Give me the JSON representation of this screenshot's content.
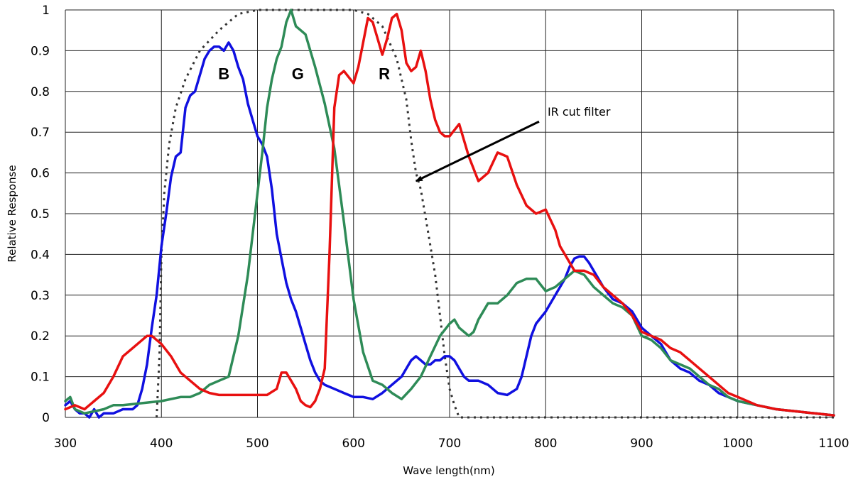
{
  "chart_data": {
    "type": "line",
    "title": "",
    "xlabel": "Wave length(nm)",
    "ylabel": "Relative Response",
    "xlim": [
      300,
      1100
    ],
    "ylim": [
      0,
      1
    ],
    "x_ticks": [
      300,
      400,
      500,
      600,
      700,
      800,
      900,
      1000,
      1100
    ],
    "y_ticks": [
      0,
      0.1,
      0.2,
      0.3,
      0.4,
      0.5,
      0.6,
      0.7,
      0.8,
      0.9,
      1
    ],
    "y_tick_labels": [
      "0",
      "0.1",
      "0.2",
      "0.3",
      "0.4",
      "0.5",
      "0.6",
      "0.7",
      "0.8",
      "0.9",
      "1"
    ],
    "grid": true,
    "series": [
      {
        "name": "IR cut filter",
        "color": "#333333",
        "style": "dotted",
        "x": [
          395,
          398,
          400,
          403,
          408,
          415,
          425,
          440,
          460,
          480,
          500,
          520,
          540,
          560,
          580,
          600,
          615,
          630,
          645,
          655,
          660,
          665,
          670,
          678,
          685,
          690,
          695,
          700,
          705,
          710,
          730,
          800,
          900,
          1000,
          1100
        ],
        "y": [
          0,
          0.15,
          0.4,
          0.55,
          0.67,
          0.76,
          0.83,
          0.9,
          0.95,
          0.99,
          1,
          1,
          1,
          1,
          1,
          1,
          0.99,
          0.96,
          0.88,
          0.78,
          0.68,
          0.6,
          0.56,
          0.45,
          0.35,
          0.25,
          0.15,
          0.07,
          0.03,
          0,
          0,
          0,
          0,
          0,
          0
        ]
      },
      {
        "name": "B",
        "color": "#1010e0",
        "style": "solid",
        "x": [
          300,
          305,
          310,
          315,
          320,
          325,
          330,
          335,
          340,
          350,
          360,
          370,
          375,
          380,
          385,
          390,
          395,
          400,
          405,
          410,
          415,
          420,
          425,
          430,
          435,
          440,
          445,
          450,
          455,
          460,
          465,
          470,
          475,
          480,
          485,
          490,
          495,
          500,
          505,
          510,
          515,
          520,
          525,
          530,
          535,
          540,
          545,
          550,
          555,
          560,
          565,
          570,
          580,
          590,
          600,
          610,
          620,
          630,
          640,
          650,
          655,
          660,
          665,
          670,
          675,
          680,
          685,
          690,
          695,
          700,
          705,
          710,
          715,
          720,
          730,
          740,
          750,
          760,
          770,
          775,
          780,
          785,
          790,
          800,
          810,
          820,
          825,
          830,
          835,
          840,
          845,
          850,
          860,
          870,
          880,
          890,
          900,
          910,
          920,
          930,
          940,
          950,
          960,
          970,
          980,
          990,
          1000,
          1020,
          1040,
          1060,
          1080,
          1100
        ],
        "y": [
          0.03,
          0.04,
          0.02,
          0.01,
          0.01,
          0,
          0.02,
          0,
          0.01,
          0.01,
          0.02,
          0.02,
          0.03,
          0.07,
          0.13,
          0.22,
          0.3,
          0.42,
          0.5,
          0.59,
          0.64,
          0.65,
          0.76,
          0.79,
          0.8,
          0.84,
          0.88,
          0.9,
          0.91,
          0.91,
          0.9,
          0.92,
          0.9,
          0.86,
          0.83,
          0.77,
          0.73,
          0.69,
          0.67,
          0.64,
          0.56,
          0.45,
          0.39,
          0.33,
          0.29,
          0.26,
          0.22,
          0.18,
          0.14,
          0.11,
          0.09,
          0.08,
          0.07,
          0.06,
          0.05,
          0.05,
          0.045,
          0.06,
          0.08,
          0.1,
          0.12,
          0.14,
          0.15,
          0.14,
          0.13,
          0.13,
          0.14,
          0.14,
          0.15,
          0.15,
          0.14,
          0.12,
          0.1,
          0.09,
          0.09,
          0.08,
          0.06,
          0.055,
          0.07,
          0.1,
          0.15,
          0.2,
          0.23,
          0.26,
          0.3,
          0.34,
          0.37,
          0.39,
          0.395,
          0.395,
          0.38,
          0.36,
          0.32,
          0.29,
          0.28,
          0.26,
          0.22,
          0.2,
          0.18,
          0.14,
          0.12,
          0.11,
          0.09,
          0.08,
          0.06,
          0.05,
          0.04,
          0.03,
          0.02,
          0.015,
          0.01,
          0.005
        ]
      },
      {
        "name": "G",
        "color": "#2e8b57",
        "style": "solid",
        "x": [
          300,
          305,
          310,
          320,
          330,
          340,
          350,
          360,
          380,
          400,
          420,
          430,
          440,
          450,
          460,
          470,
          480,
          490,
          500,
          505,
          510,
          515,
          520,
          525,
          530,
          535,
          540,
          545,
          550,
          555,
          560,
          570,
          580,
          590,
          600,
          610,
          620,
          630,
          640,
          650,
          660,
          670,
          680,
          690,
          700,
          705,
          710,
          715,
          720,
          725,
          730,
          740,
          750,
          760,
          770,
          780,
          790,
          800,
          810,
          820,
          830,
          840,
          850,
          860,
          870,
          880,
          890,
          900,
          910,
          920,
          930,
          940,
          950,
          960,
          970,
          980,
          990,
          1000,
          1020,
          1040,
          1060,
          1080,
          1100
        ],
        "y": [
          0.04,
          0.05,
          0.02,
          0.01,
          0.015,
          0.02,
          0.03,
          0.03,
          0.035,
          0.04,
          0.05,
          0.05,
          0.06,
          0.08,
          0.09,
          0.1,
          0.2,
          0.35,
          0.55,
          0.65,
          0.76,
          0.83,
          0.88,
          0.91,
          0.97,
          1,
          0.96,
          0.95,
          0.94,
          0.9,
          0.86,
          0.77,
          0.66,
          0.48,
          0.29,
          0.16,
          0.09,
          0.08,
          0.06,
          0.045,
          0.07,
          0.1,
          0.15,
          0.2,
          0.23,
          0.24,
          0.22,
          0.21,
          0.2,
          0.21,
          0.24,
          0.28,
          0.28,
          0.3,
          0.33,
          0.34,
          0.34,
          0.31,
          0.32,
          0.34,
          0.36,
          0.35,
          0.32,
          0.3,
          0.28,
          0.27,
          0.25,
          0.2,
          0.19,
          0.17,
          0.14,
          0.13,
          0.12,
          0.1,
          0.08,
          0.07,
          0.05,
          0.04,
          0.03,
          0.02,
          0.015,
          0.01,
          0.005
        ]
      },
      {
        "name": "R",
        "color": "#e81010",
        "style": "solid",
        "x": [
          300,
          310,
          320,
          330,
          340,
          350,
          360,
          370,
          380,
          385,
          390,
          400,
          410,
          420,
          430,
          440,
          450,
          460,
          470,
          480,
          490,
          500,
          510,
          520,
          525,
          530,
          535,
          540,
          545,
          550,
          555,
          560,
          565,
          570,
          575,
          580,
          585,
          590,
          600,
          605,
          610,
          615,
          620,
          625,
          630,
          635,
          640,
          645,
          650,
          655,
          660,
          665,
          670,
          675,
          680,
          685,
          690,
          695,
          700,
          710,
          720,
          730,
          740,
          750,
          760,
          770,
          780,
          790,
          800,
          810,
          815,
          820,
          830,
          840,
          850,
          860,
          870,
          880,
          890,
          900,
          910,
          920,
          930,
          940,
          950,
          960,
          970,
          980,
          990,
          1000,
          1020,
          1040,
          1060,
          1080,
          1100
        ],
        "y": [
          0.02,
          0.03,
          0.02,
          0.04,
          0.06,
          0.1,
          0.15,
          0.17,
          0.19,
          0.2,
          0.2,
          0.18,
          0.15,
          0.11,
          0.09,
          0.07,
          0.06,
          0.055,
          0.055,
          0.055,
          0.055,
          0.055,
          0.055,
          0.07,
          0.11,
          0.11,
          0.09,
          0.07,
          0.04,
          0.03,
          0.025,
          0.04,
          0.07,
          0.12,
          0.4,
          0.76,
          0.84,
          0.85,
          0.82,
          0.86,
          0.92,
          0.98,
          0.97,
          0.93,
          0.89,
          0.93,
          0.98,
          0.99,
          0.95,
          0.87,
          0.85,
          0.86,
          0.9,
          0.85,
          0.78,
          0.73,
          0.7,
          0.69,
          0.69,
          0.72,
          0.64,
          0.58,
          0.6,
          0.65,
          0.64,
          0.57,
          0.52,
          0.5,
          0.51,
          0.46,
          0.42,
          0.4,
          0.36,
          0.36,
          0.35,
          0.32,
          0.3,
          0.28,
          0.25,
          0.21,
          0.2,
          0.19,
          0.17,
          0.16,
          0.14,
          0.12,
          0.1,
          0.08,
          0.06,
          0.05,
          0.03,
          0.02,
          0.015,
          0.01,
          0.005
        ]
      }
    ],
    "annotations": [
      {
        "text": "B",
        "x": 465,
        "y": 0.83,
        "color": "#000000"
      },
      {
        "text": "G",
        "x": 542,
        "y": 0.83,
        "color": "#000000"
      },
      {
        "text": "R",
        "x": 632,
        "y": 0.83,
        "color": "#000000"
      },
      {
        "text": "IR cut filter",
        "x": 802,
        "y": 0.74,
        "color": "#000000",
        "arrow_to": [
          665,
          0.58
        ]
      }
    ]
  }
}
